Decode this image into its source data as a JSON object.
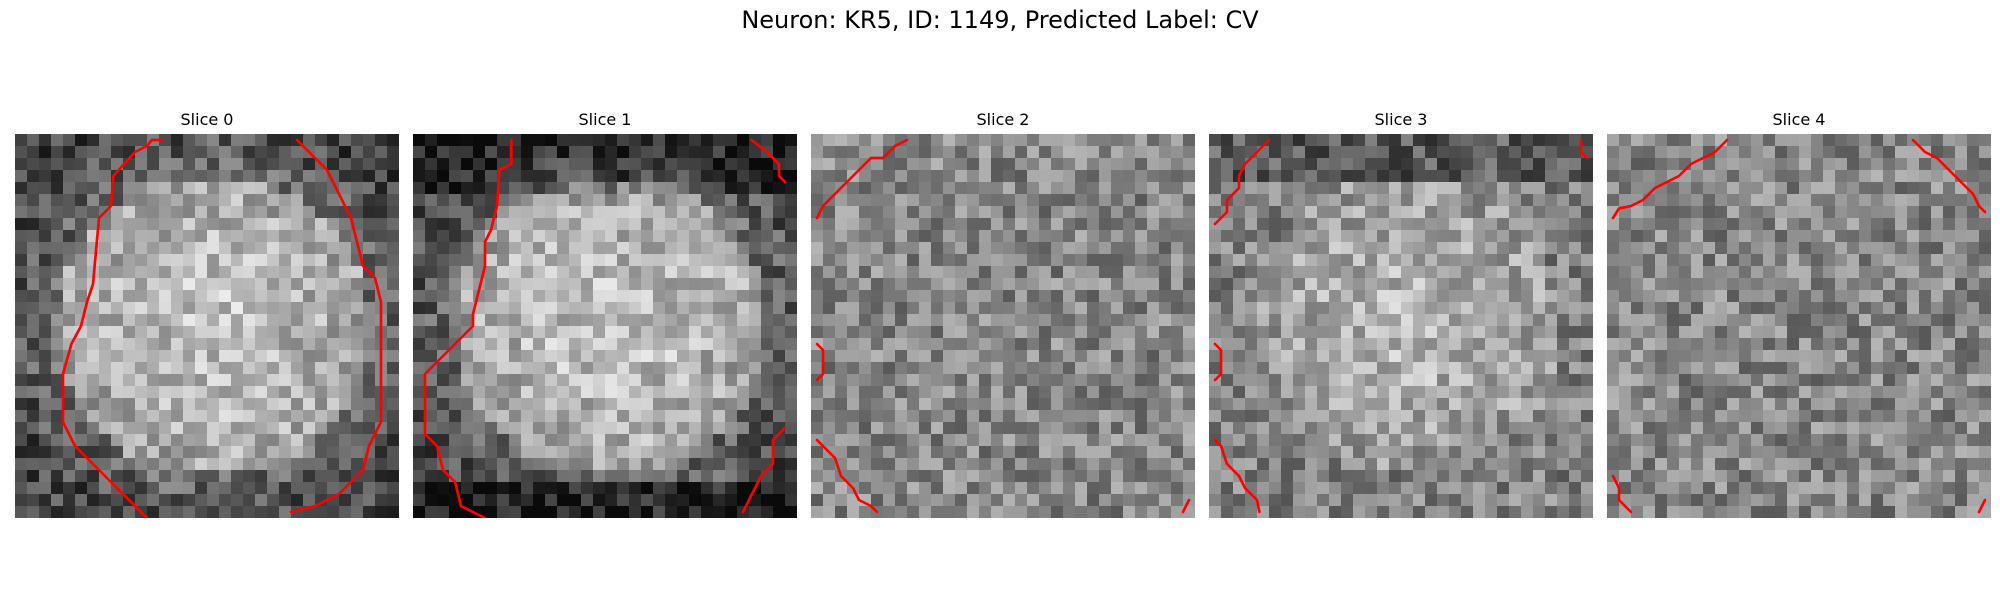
{
  "figure": {
    "title": "Neuron: KR5, ID: 1149, Predicted Label: CV",
    "colormap": "grayscale",
    "contour_color": "#ff0000",
    "grid": [
      32,
      32
    ]
  },
  "slices": [
    {
      "title": "Slice 0",
      "pattern": "bright-oval-center",
      "contour_segments": 3
    },
    {
      "title": "Slice 1",
      "pattern": "bright-oval-center",
      "contour_segments": 3
    },
    {
      "title": "Slice 2",
      "pattern": "noise",
      "contour_segments": 4
    },
    {
      "title": "Slice 3",
      "pattern": "faint-bright-center",
      "contour_segments": 4
    },
    {
      "title": "Slice 4",
      "pattern": "noise",
      "contour_segments": 4
    }
  ]
}
